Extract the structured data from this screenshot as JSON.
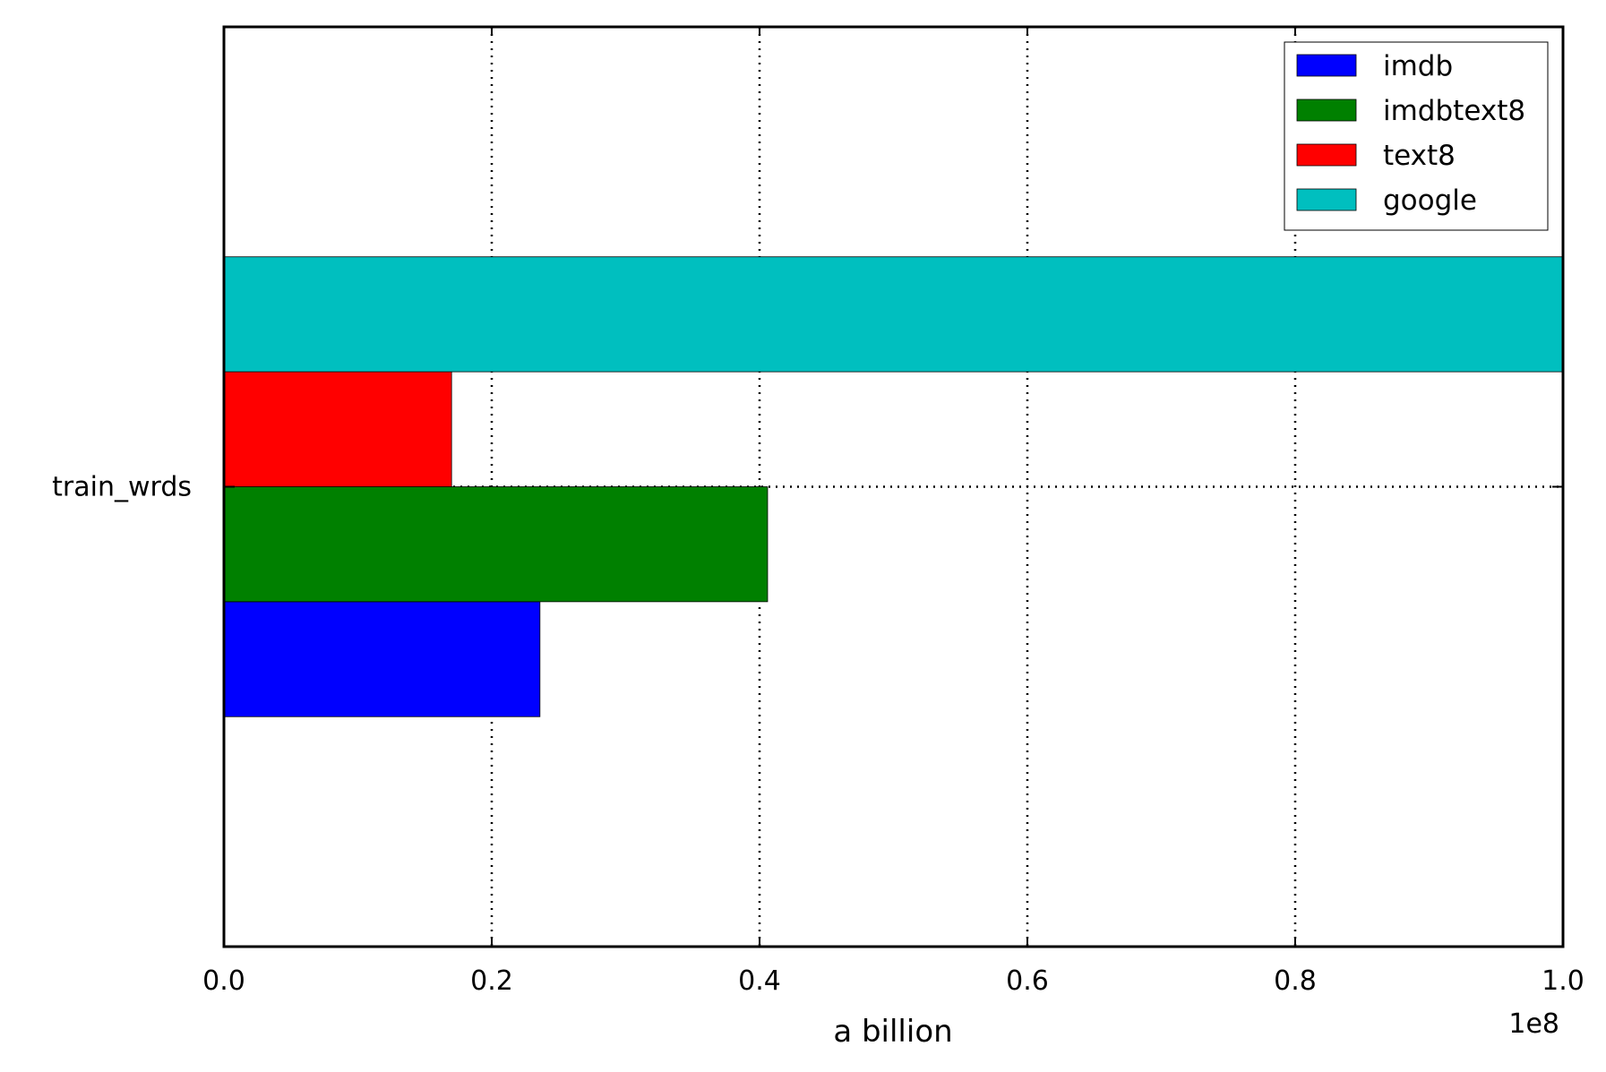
{
  "chart_data": {
    "type": "bar",
    "orientation": "horizontal",
    "categories": [
      "train_wrds"
    ],
    "series": [
      {
        "name": "imdb",
        "color": "#0000ff",
        "values": [
          23600000
        ]
      },
      {
        "name": "imdbtext8",
        "color": "#008000",
        "values": [
          40600000
        ]
      },
      {
        "name": "text8",
        "color": "#ff0000",
        "values": [
          17000000
        ]
      },
      {
        "name": "google",
        "color": "#00bfbf",
        "values": [
          100000000
        ]
      }
    ],
    "xlabel": "a billion",
    "ylabel": "",
    "xlim": [
      0,
      100000000
    ],
    "x_tick_labels": [
      "0.0",
      "0.2",
      "0.4",
      "0.6",
      "0.8",
      "1.0"
    ],
    "x_offset_text": "1e8",
    "grid": true,
    "grid_style": "dotted",
    "legend_position": "top-right"
  }
}
